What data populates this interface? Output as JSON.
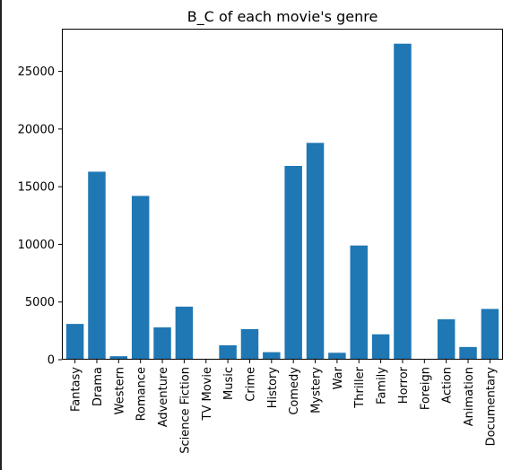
{
  "chart_data": {
    "type": "bar",
    "title": "B_C of each movie's genre",
    "xlabel": "",
    "ylabel": "",
    "categories": [
      "Fantasy",
      "Drama",
      "Western",
      "Romance",
      "Adventure",
      "Science Fiction",
      "TV Movie",
      "Music",
      "Crime",
      "History",
      "Comedy",
      "Mystery",
      "War",
      "Thriller",
      "Family",
      "Horror",
      "Foreign",
      "Action",
      "Animation",
      "Documentary"
    ],
    "values": [
      3100,
      16300,
      300,
      14200,
      2800,
      4600,
      80,
      1250,
      2650,
      650,
      16800,
      18800,
      600,
      9900,
      2200,
      27400,
      60,
      3500,
      1100,
      4400
    ],
    "yticks": [
      0,
      5000,
      10000,
      15000,
      20000,
      25000
    ],
    "ylim": [
      0,
      28700
    ],
    "grid": false,
    "colors": {
      "bar": "#1f77b4"
    }
  }
}
